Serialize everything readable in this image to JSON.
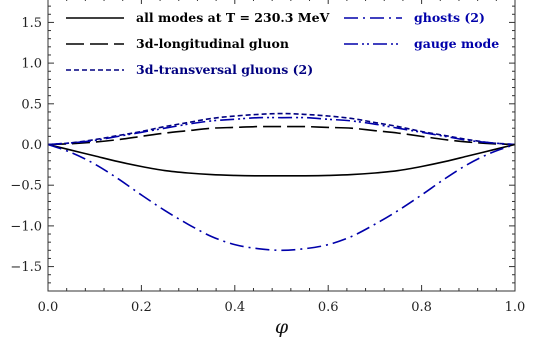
{
  "chart_data": {
    "type": "line",
    "xlabel": "φ",
    "ylabel": "",
    "xlim": [
      0.0,
      1.0
    ],
    "ylim": [
      -1.8,
      1.8
    ],
    "x_ticks": [
      "0.0",
      "0.2",
      "0.4",
      "0.6",
      "0.8",
      "1.0"
    ],
    "y_ticks": [
      "−1.5",
      "−1.0",
      "−0.5",
      "0.0",
      "0.5",
      "1.0",
      "1.5"
    ],
    "x_tick_values": [
      0.0,
      0.2,
      0.4,
      0.6,
      0.8,
      1.0
    ],
    "y_tick_values": [
      -1.5,
      -1.0,
      -0.5,
      0.0,
      0.5,
      1.0,
      1.5
    ],
    "grid": false,
    "legend_position": "top",
    "x": [
      0.0,
      0.05,
      0.1,
      0.15,
      0.2,
      0.25,
      0.3,
      0.35,
      0.4,
      0.45,
      0.5,
      0.55,
      0.6,
      0.65,
      0.7,
      0.75,
      0.8,
      0.85,
      0.9,
      0.95,
      1.0
    ],
    "series": [
      {
        "name": "all modes at T = 230.3 MeV",
        "color": "#000000",
        "dash": "solid",
        "values": [
          0.0,
          -0.07,
          -0.14,
          -0.21,
          -0.27,
          -0.32,
          -0.35,
          -0.37,
          -0.38,
          -0.385,
          -0.385,
          -0.385,
          -0.38,
          -0.37,
          -0.35,
          -0.32,
          -0.27,
          -0.21,
          -0.14,
          -0.07,
          0.0
        ]
      },
      {
        "name": "3d-longitudinal gluon",
        "color": "#000000",
        "dash": "long-dash",
        "values": [
          0.0,
          0.01,
          0.03,
          0.06,
          0.1,
          0.14,
          0.17,
          0.2,
          0.21,
          0.22,
          0.22,
          0.22,
          0.21,
          0.2,
          0.17,
          0.14,
          0.1,
          0.06,
          0.03,
          0.01,
          0.0
        ]
      },
      {
        "name": "3d-transversal gluons (2)",
        "color": "#000080",
        "dash": "short-dash",
        "values": [
          0.0,
          0.02,
          0.06,
          0.11,
          0.16,
          0.22,
          0.27,
          0.32,
          0.35,
          0.37,
          0.38,
          0.37,
          0.35,
          0.32,
          0.27,
          0.22,
          0.16,
          0.11,
          0.06,
          0.02,
          0.0
        ]
      },
      {
        "name": "ghosts (2)",
        "color": "#0000aa",
        "dash": "dash-dot",
        "values": [
          0.0,
          -0.1,
          -0.24,
          -0.42,
          -0.62,
          -0.81,
          -0.98,
          -1.13,
          -1.23,
          -1.28,
          -1.3,
          -1.28,
          -1.23,
          -1.13,
          -0.98,
          -0.81,
          -0.62,
          -0.42,
          -0.24,
          -0.1,
          0.0
        ]
      },
      {
        "name": "gauge mode",
        "color": "#0000aa",
        "dash": "dash-dot-dot",
        "values": [
          0.0,
          0.02,
          0.05,
          0.1,
          0.15,
          0.2,
          0.25,
          0.29,
          0.31,
          0.33,
          0.33,
          0.33,
          0.31,
          0.29,
          0.25,
          0.2,
          0.15,
          0.1,
          0.05,
          0.02,
          0.0
        ]
      }
    ]
  }
}
